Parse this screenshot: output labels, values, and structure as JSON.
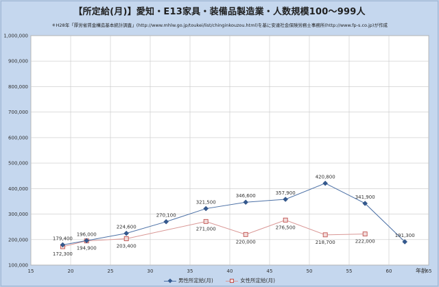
{
  "chart_data": {
    "type": "line",
    "title": "【所定給(月)】愛知・E13家具・装備品製造業・人数規模100〜999人",
    "subtitle": "＊H28年「厚労省賃金構造基本統計調査」(http://www.mhlw.go.jp/toukei/list/chinginkouzou.html)を基に安達社会保険労務士事務所(http://www.fp-s.co.jp)が作成",
    "xlabel": "年齢",
    "ylabel": "",
    "xlim": [
      15,
      65
    ],
    "ylim": [
      100000,
      1000000
    ],
    "x_ticks": [
      15,
      20,
      25,
      30,
      35,
      40,
      45,
      50,
      55,
      60,
      65
    ],
    "y_ticks": [
      100000,
      200000,
      300000,
      400000,
      500000,
      600000,
      700000,
      800000,
      900000,
      1000000
    ],
    "y_tick_labels": [
      "100,000",
      "200,000",
      "300,000",
      "400,000",
      "500,000",
      "600,000",
      "700,000",
      "800,000",
      "900,000",
      "1,000,000"
    ],
    "grid": true,
    "legend_position": "bottom",
    "series": [
      {
        "name": "男性所定給(月)",
        "color": "#4a6fa5",
        "marker": "diamond",
        "x": [
          19,
          22,
          27,
          32,
          37,
          42,
          47,
          52,
          57,
          62
        ],
        "y": [
          179400,
          196000,
          224600,
          270100,
          321500,
          346600,
          357900,
          420800,
          341900,
          191300
        ],
        "labels": [
          "179,400",
          "196,000",
          "224,600",
          "270,100",
          "321,500",
          "346,600",
          "357,900",
          "420,800",
          "341,900",
          "191,300"
        ]
      },
      {
        "name": "女性所定給(月)",
        "color": "#d99694",
        "marker": "square",
        "x": [
          19,
          22,
          27,
          37,
          42,
          47,
          52,
          57
        ],
        "y": [
          172300,
          194900,
          203400,
          271000,
          220000,
          276500,
          218700,
          222000
        ],
        "labels": [
          "172,300",
          "194,900",
          "203,400",
          "271,000",
          "220,000",
          "276,500",
          "218,700",
          "222,000"
        ]
      }
    ]
  }
}
